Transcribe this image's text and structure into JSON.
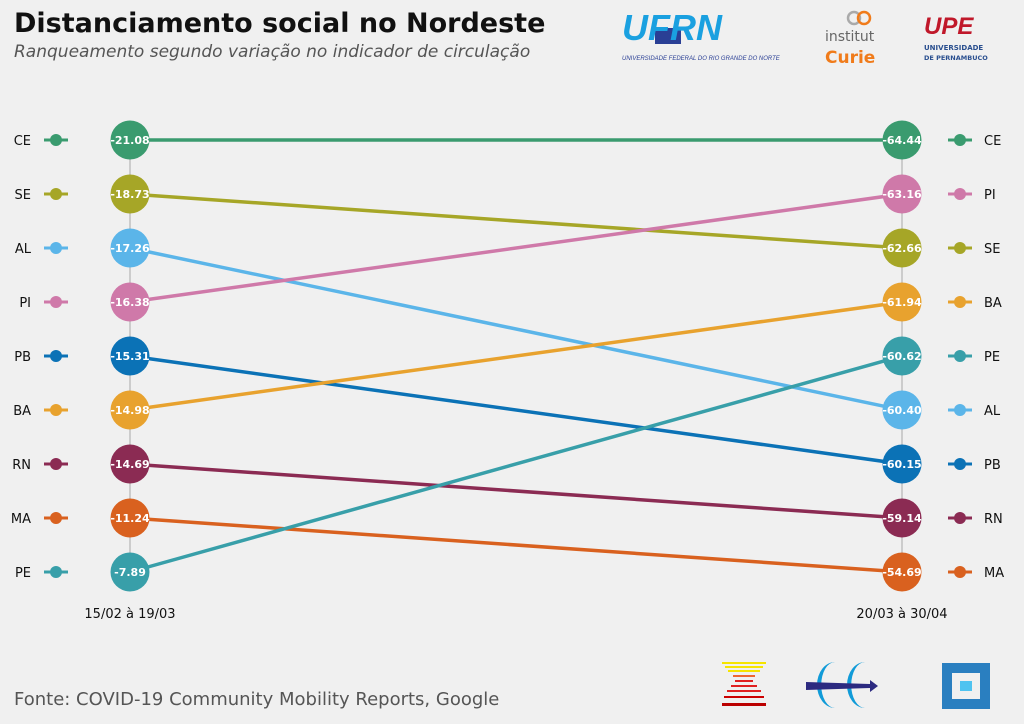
{
  "header": {
    "title": "Distanciamento social no Nordeste",
    "subtitle": "Ranqueamento segundo variação no indicador de circulação"
  },
  "footer": {
    "source": "Fonte: COVID-19 Community Mobility Reports, Google"
  },
  "logos": {
    "ufrn": {
      "text": "UFRN",
      "caption": "UNIVERSIDADE FEDERAL DO RIO GRANDE DO NORTE"
    },
    "curie": {
      "line1": "institut",
      "line2": "Curie"
    },
    "upe": {
      "text": "UPE",
      "line1": "UNIVERSIDADE",
      "line2": "DE PERNAMBUCO"
    }
  },
  "chart_data": {
    "type": "slope",
    "title": "Distanciamento social no Nordeste",
    "periods": [
      "15/02 à 19/03",
      "20/03 à 30/04"
    ],
    "series": [
      {
        "name": "CE",
        "color": "#3a9b6f",
        "values": [
          -21.08,
          -64.44
        ]
      },
      {
        "name": "SE",
        "color": "#a6a627",
        "values": [
          -18.73,
          -62.66
        ]
      },
      {
        "name": "AL",
        "color": "#5bb5e9",
        "values": [
          -17.26,
          -60.4
        ]
      },
      {
        "name": "PI",
        "color": "#cf79a9",
        "values": [
          -16.38,
          -63.16
        ]
      },
      {
        "name": "PB",
        "color": "#0b72b6",
        "values": [
          -15.31,
          -60.15
        ]
      },
      {
        "name": "BA",
        "color": "#e8a22e",
        "values": [
          -14.98,
          -61.94
        ]
      },
      {
        "name": "RN",
        "color": "#8b2b53",
        "values": [
          -14.69,
          -59.14
        ]
      },
      {
        "name": "MA",
        "color": "#d9611f",
        "values": [
          -11.24,
          -54.69
        ]
      },
      {
        "name": "PE",
        "color": "#389fa9",
        "values": [
          -7.89,
          -60.62
        ]
      }
    ]
  }
}
